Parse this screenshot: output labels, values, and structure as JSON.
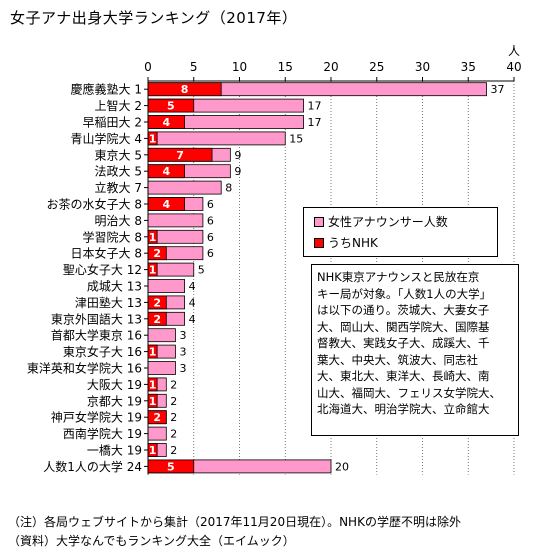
{
  "title": "女子アナ出身大学ランキング（2017年）",
  "chart_data": {
    "type": "bar",
    "orientation": "horizontal",
    "stacked_overlay": true,
    "unit_label": "人",
    "xlim": [
      0,
      40
    ],
    "xticks": [
      0,
      5,
      10,
      15,
      20,
      25,
      30,
      35,
      40
    ],
    "grid": true,
    "legend_position": "top-right",
    "categories": [
      "慶應義塾大 1",
      "上智大 2",
      "早稲田大 2",
      "青山学院大 4",
      "東京大 5",
      "法政大 5",
      "立教大 7",
      "お茶の水女子大 8",
      "明治大 8",
      "学習院大 8",
      "日本女子大 8",
      "聖心女子大 12",
      "成城大 13",
      "津田塾大 13",
      "東京外国語大 13",
      "首都大学東京 16",
      "東京女子大 16",
      "東洋英和女学院大 16",
      "大阪大 19",
      "京都大 19",
      "神戸女学院大 19",
      "西南学院大 19",
      "一橋大 19",
      "人数1人の大学 24"
    ],
    "series": [
      {
        "name": "女性アナウンサー人数",
        "color": "#ff99cc",
        "values": [
          37,
          17,
          17,
          15,
          9,
          9,
          8,
          6,
          6,
          6,
          6,
          5,
          4,
          4,
          4,
          3,
          3,
          3,
          2,
          2,
          2,
          2,
          2,
          20
        ]
      },
      {
        "name": "うちNHK",
        "color": "#ff0000",
        "values": [
          8,
          5,
          4,
          1,
          7,
          4,
          0,
          4,
          0,
          1,
          2,
          1,
          0,
          2,
          2,
          0,
          1,
          0,
          1,
          1,
          2,
          0,
          1,
          5
        ]
      }
    ]
  },
  "note_box": [
    "NHK東京アナウンスと民放在京",
    "キー局が対象。「人数1人の大学」",
    "は以下の通り。茨城大、大妻女子",
    "大、岡山大、関西学院大、国際基",
    "督教大、実践女子大、成蹊大、千",
    "葉大、中央大、筑波大、同志社",
    "大、東北大、東洋大、長崎大、南",
    "山大、福岡大、フェリス女学院大、",
    "北海道大、明治学院大、立命館大"
  ],
  "footnotes": {
    "note": "（注）各局ウェブサイトから集計（2017年11月20日現在）。NHKの学歴不明は除外",
    "source": "（資料）大学なんでもランキング大全（エイムック）"
  }
}
